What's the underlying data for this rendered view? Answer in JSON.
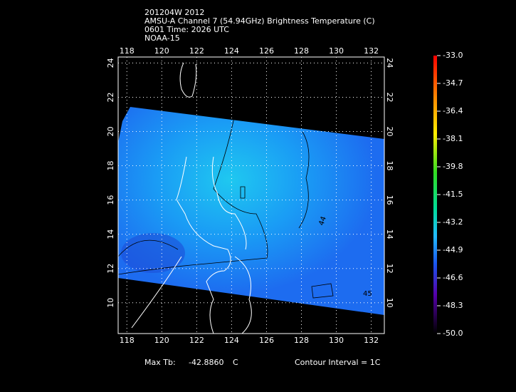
{
  "header": {
    "lines": [
      "201204W 2012",
      "AMSU-A Channel 7 (54.94GHz) Brightness Temperature (C)",
      "0601 Time: 2026 UTC",
      "NOAA-15"
    ]
  },
  "map": {
    "lonlim": [
      117.5,
      132.75
    ],
    "latlim": [
      8.2,
      24.35
    ],
    "lon_ticks": [
      118,
      120,
      122,
      124,
      126,
      128,
      130,
      132
    ],
    "lat_ticks": [
      10,
      12,
      14,
      16,
      18,
      20,
      22,
      24
    ],
    "contour_labels": [
      "44",
      "45"
    ]
  },
  "colorbar": {
    "lim": [
      -50.0,
      -33.0
    ],
    "ticks": [
      {
        "value": -33.0,
        "label": "-33.0"
      },
      {
        "value": -34.7,
        "label": "-34.7"
      },
      {
        "value": -36.4,
        "label": "-36.4"
      },
      {
        "value": -38.1,
        "label": "-38.1"
      },
      {
        "value": -39.8,
        "label": "-39.8"
      },
      {
        "value": -41.5,
        "label": "-41.5"
      },
      {
        "value": -43.2,
        "label": "-43.2"
      },
      {
        "value": -44.9,
        "label": "-44.9"
      },
      {
        "value": -46.6,
        "label": "-46.6"
      },
      {
        "value": -48.3,
        "label": "-48.3"
      },
      {
        "value": -50.0,
        "label": "-50.0"
      }
    ]
  },
  "footer": {
    "max_label": "Max Tb:",
    "max_value": "-42.8860",
    "max_unit": "C",
    "contour": "Contour Interval = 1C"
  }
}
